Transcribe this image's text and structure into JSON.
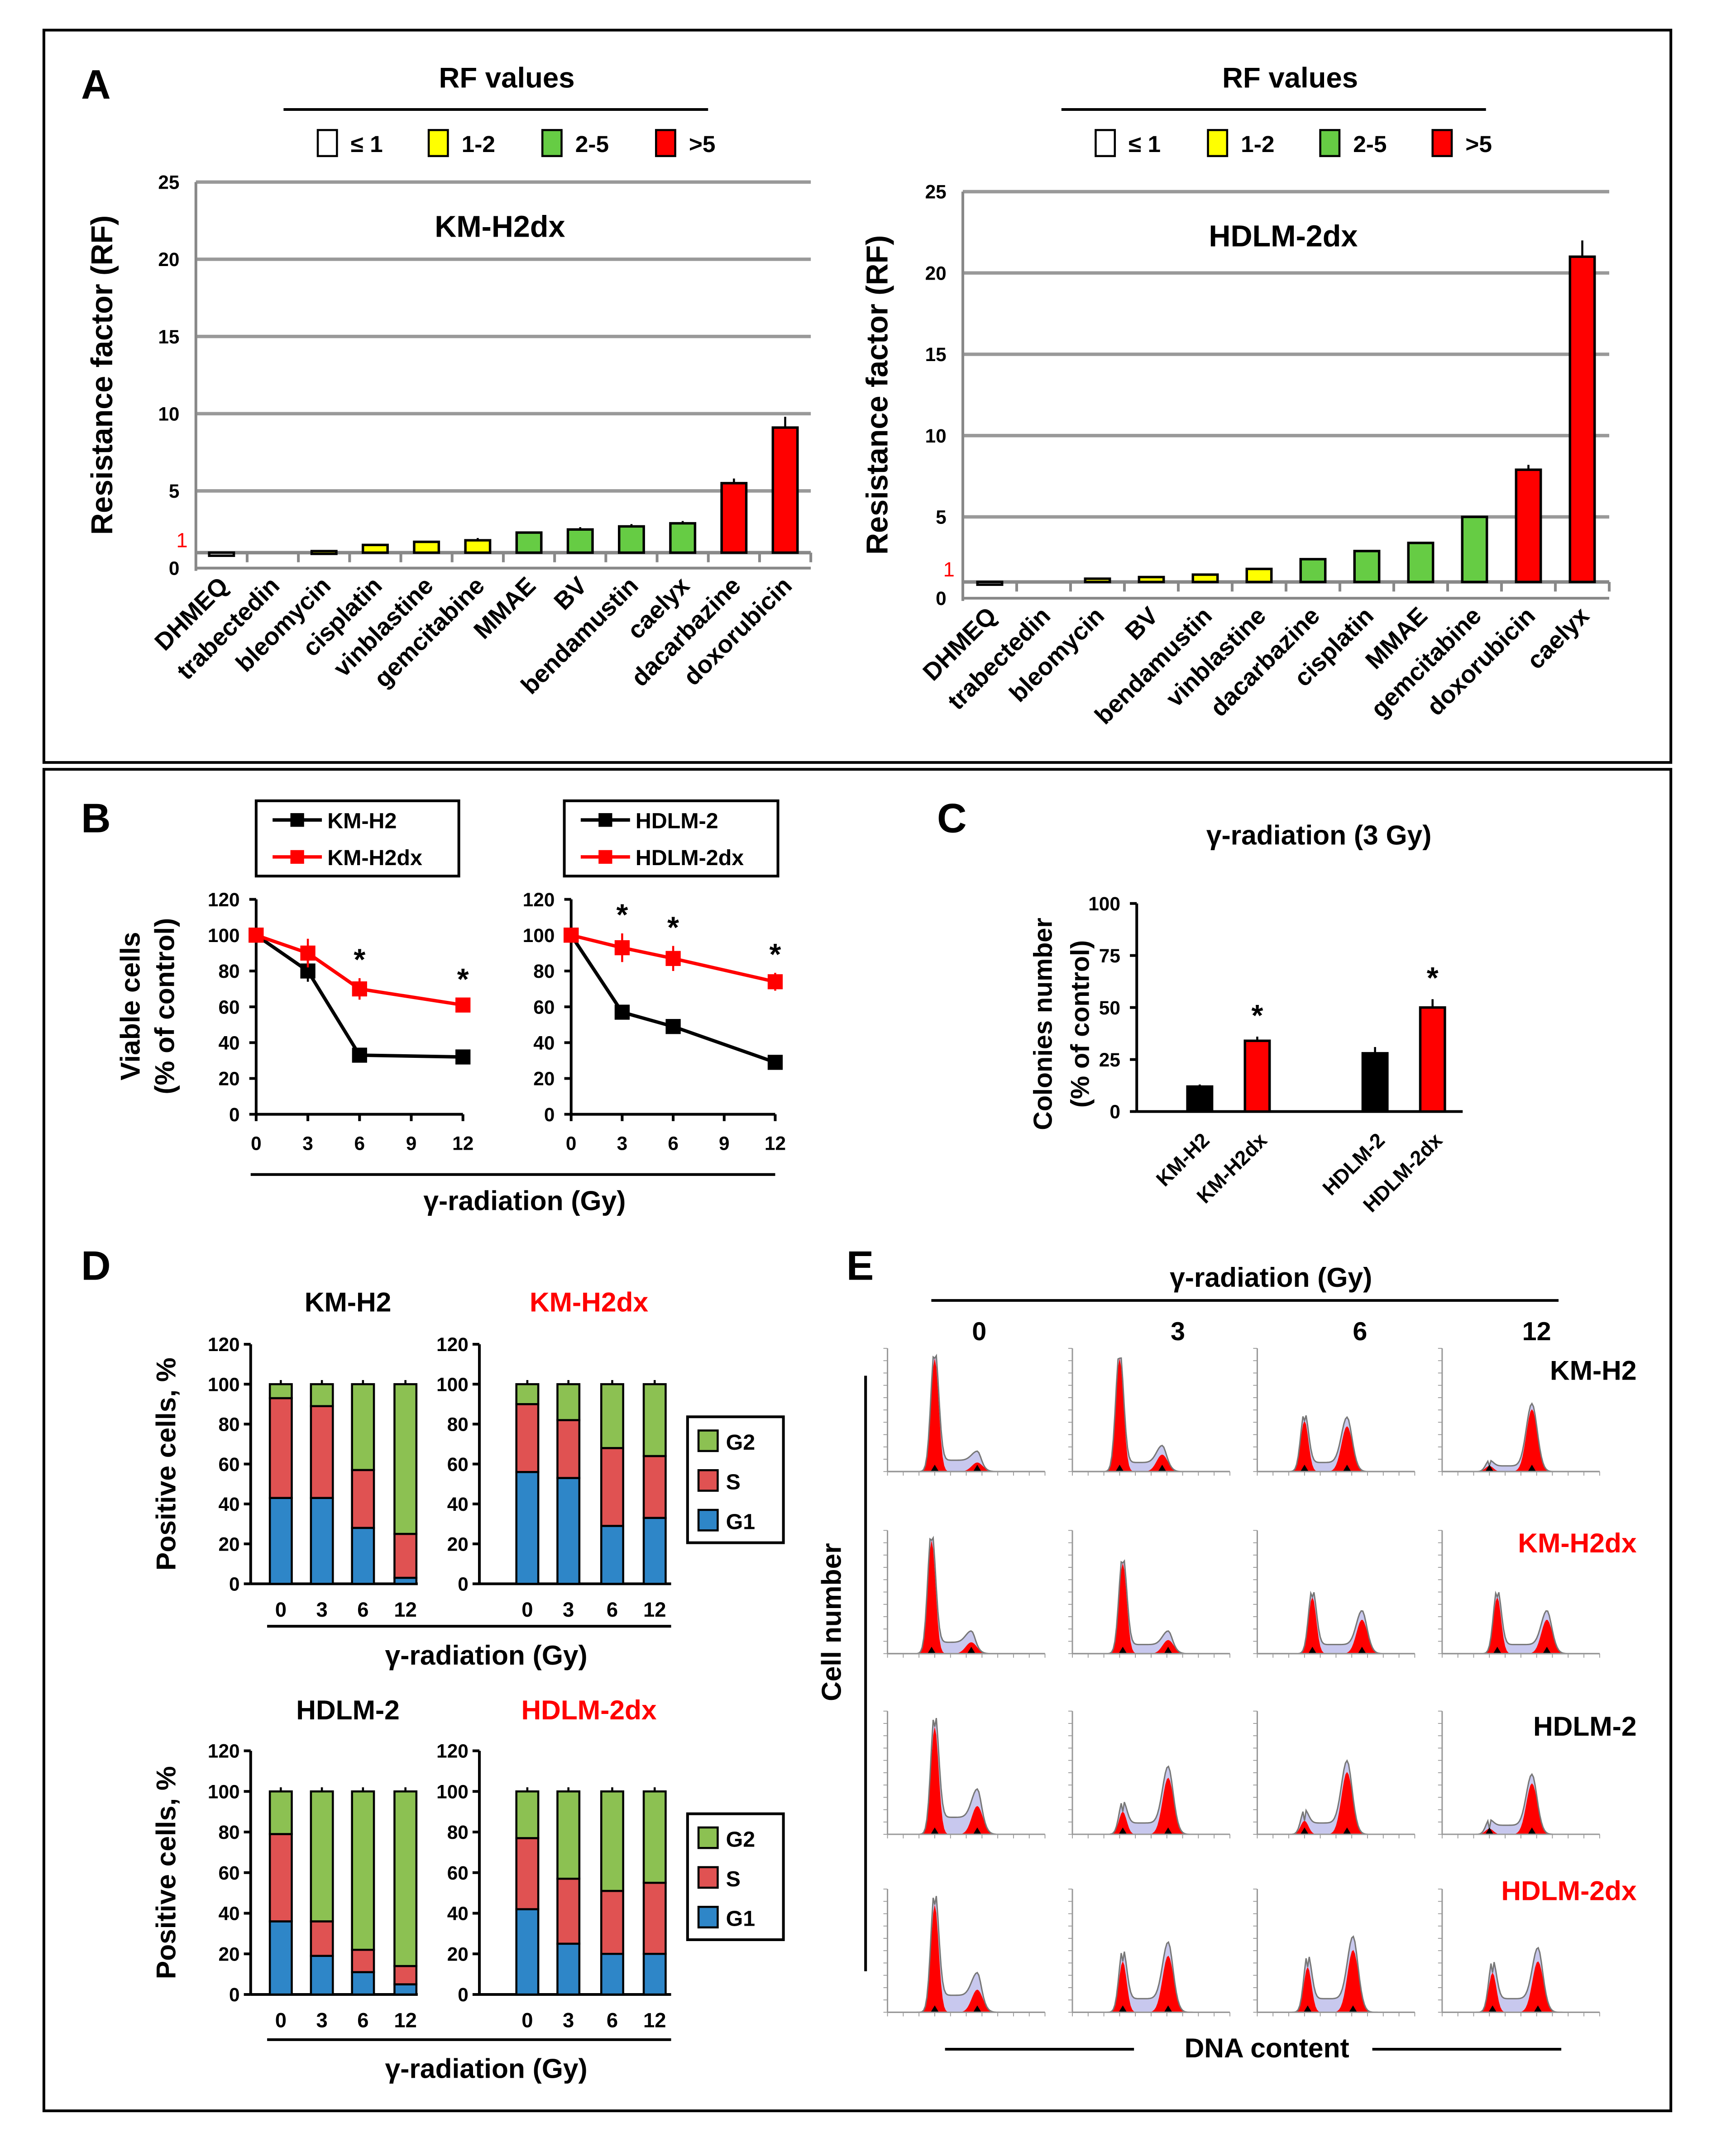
{
  "panel_labels": {
    "a": "A",
    "b": "B",
    "c": "C",
    "d": "D",
    "e": "E"
  },
  "chart_data": [
    {
      "panel": "A",
      "type": "bar",
      "title": "KM-H2dx",
      "legend_title": "RF values",
      "legend": [
        {
          "label": "≤ 1",
          "color": "#ffffff"
        },
        {
          "label": "1-2",
          "color": "#ffff00"
        },
        {
          "label": "2-5",
          "color": "#66cc44"
        },
        {
          "label": ">5",
          "color": "#ff0000"
        }
      ],
      "ylabel": "Resistance factor  (RF)",
      "ylim": [
        0,
        25
      ],
      "yticks": [
        "0",
        "5",
        "10",
        "15",
        "20",
        "25"
      ],
      "baseline": 1,
      "baseline_label": "1",
      "grid": true,
      "categories": [
        "DHMEQ",
        "trabectedin",
        "bleomycin",
        "cisplatin",
        "vinblastine",
        "gemcitabine",
        "MMAE",
        "BV",
        "bendamustin",
        "caelyx",
        "dacarbazine",
        "doxorubicin"
      ],
      "values": [
        0.8,
        1.0,
        1.1,
        1.5,
        1.7,
        1.8,
        2.3,
        2.5,
        2.7,
        2.9,
        5.5,
        9.1
      ],
      "errors": [
        0.05,
        0,
        0.05,
        0.1,
        0.1,
        0.15,
        0.1,
        0.15,
        0.15,
        0.15,
        0.3,
        0.7
      ]
    },
    {
      "panel": "A",
      "type": "bar",
      "title": "HDLM-2dx",
      "legend_title": "RF values",
      "legend": [
        {
          "label": "≤ 1",
          "color": "#ffffff"
        },
        {
          "label": "1-2",
          "color": "#ffff00"
        },
        {
          "label": "2-5",
          "color": "#66cc44"
        },
        {
          "label": ">5",
          "color": "#ff0000"
        }
      ],
      "ylabel": "Resistance factor (RF)",
      "ylim": [
        0,
        25
      ],
      "yticks": [
        "0",
        "5",
        "10",
        "15",
        "20",
        "25"
      ],
      "baseline": 1,
      "baseline_label": "1",
      "grid": true,
      "categories": [
        "DHMEQ",
        "trabectedin",
        "bleomycin",
        "BV",
        "bendamustin",
        "vinblastine",
        "dacarbazine",
        "cisplatin",
        "MMAE",
        "gemcitabine",
        "doxorubicin",
        "caelyx"
      ],
      "values": [
        0.9,
        1.0,
        1.2,
        1.3,
        1.45,
        1.8,
        2.4,
        2.9,
        3.4,
        5.0,
        7.9,
        21.0
      ],
      "errors": [
        0.05,
        0,
        0.05,
        0.05,
        0.05,
        0.1,
        0.1,
        0.1,
        0.1,
        0.1,
        0.3,
        1.0
      ]
    },
    {
      "panel": "B",
      "type": "line",
      "x": [
        0,
        3,
        6,
        12
      ],
      "xticks": [
        "0",
        "3",
        "6",
        "9",
        "12"
      ],
      "ylim": [
        0,
        120
      ],
      "yticks": [
        "0",
        "20",
        "40",
        "60",
        "80",
        "100",
        "120"
      ],
      "ylabel": [
        "Viable cells",
        "(% of control)"
      ],
      "series": [
        {
          "name": "KM-H2",
          "color": "#000000",
          "values": [
            100,
            80,
            33,
            32
          ],
          "errors": [
            8,
            6,
            3,
            3
          ]
        },
        {
          "name": "KM-H2dx",
          "color": "#ff0000",
          "values": [
            100,
            90,
            70,
            61
          ],
          "errors": [
            4,
            8,
            6,
            4
          ],
          "significant": [
            "",
            "",
            "*",
            "*"
          ]
        }
      ]
    },
    {
      "panel": "B",
      "type": "line",
      "x": [
        0,
        3,
        6,
        12
      ],
      "xticks": [
        "0",
        "3",
        "6",
        "9",
        "12"
      ],
      "ylim": [
        0,
        120
      ],
      "yticks": [
        "0",
        "20",
        "40",
        "60",
        "80",
        "100",
        "120"
      ],
      "xlabel": "γ-radiation (Gy)",
      "series": [
        {
          "name": "HDLM-2",
          "color": "#000000",
          "values": [
            100,
            57,
            49,
            29
          ],
          "errors": [
            2,
            4,
            3,
            2
          ]
        },
        {
          "name": "HDLM-2dx",
          "color": "#ff0000",
          "values": [
            100,
            93,
            87,
            74
          ],
          "errors": [
            3,
            8,
            7,
            5
          ],
          "significant": [
            "",
            "*",
            "*",
            "*"
          ]
        }
      ]
    },
    {
      "panel": "C",
      "type": "bar",
      "title": "γ-radiation (3 Gy)",
      "ylabel": [
        "Colonies number",
        "(% of control)"
      ],
      "ylim": [
        0,
        100
      ],
      "yticks": [
        "0",
        "25",
        "50",
        "75",
        "100"
      ],
      "categories": [
        "KM-H2",
        "KM-H2dx",
        "HDLM-2",
        "HDLM-2dx"
      ],
      "values": [
        12,
        34,
        28,
        50
      ],
      "errors": [
        1,
        2,
        3,
        4
      ],
      "colors": [
        "#000000",
        "#ff0000",
        "#000000",
        "#ff0000"
      ],
      "significant": [
        "",
        "*",
        "",
        "*"
      ]
    },
    {
      "panel": "D",
      "type": "bar",
      "stacked": true,
      "title": "KM-H2",
      "title_color": "#000000",
      "categories": [
        "0",
        "3",
        "6",
        "12"
      ],
      "ylim": [
        0,
        120
      ],
      "yticks": [
        "0",
        "20",
        "40",
        "60",
        "80",
        "100",
        "120"
      ],
      "ylabel": "Positive cells, %",
      "series": [
        {
          "name": "G1",
          "color": "#2e86c8",
          "values": [
            43,
            43,
            28,
            3
          ]
        },
        {
          "name": "S",
          "color": "#e05252",
          "values": [
            50,
            46,
            29,
            22
          ]
        },
        {
          "name": "G2",
          "color": "#8cc152",
          "values": [
            7,
            11,
            43,
            75
          ]
        }
      ]
    },
    {
      "panel": "D",
      "type": "bar",
      "stacked": true,
      "title": "KM-H2dx",
      "title_color": "#ff0000",
      "categories": [
        "0",
        "3",
        "6",
        "12"
      ],
      "ylim": [
        0,
        120
      ],
      "yticks": [
        "0",
        "20",
        "40",
        "60",
        "80",
        "100",
        "120"
      ],
      "xlabel": "γ-radiation (Gy)",
      "legend": [
        "G2",
        "S",
        "G1"
      ],
      "series": [
        {
          "name": "G1",
          "color": "#2e86c8",
          "values": [
            56,
            53,
            29,
            33
          ]
        },
        {
          "name": "S",
          "color": "#e05252",
          "values": [
            34,
            29,
            39,
            31
          ]
        },
        {
          "name": "G2",
          "color": "#8cc152",
          "values": [
            10,
            18,
            32,
            36
          ]
        }
      ]
    },
    {
      "panel": "D",
      "type": "bar",
      "stacked": true,
      "title": "HDLM-2",
      "title_color": "#000000",
      "categories": [
        "0",
        "3",
        "6",
        "12"
      ],
      "ylim": [
        0,
        120
      ],
      "yticks": [
        "0",
        "20",
        "40",
        "60",
        "80",
        "100",
        "120"
      ],
      "ylabel": "Positive cells, %",
      "series": [
        {
          "name": "G1",
          "color": "#2e86c8",
          "values": [
            36,
            19,
            11,
            5
          ]
        },
        {
          "name": "S",
          "color": "#e05252",
          "values": [
            43,
            17,
            11,
            9
          ]
        },
        {
          "name": "G2",
          "color": "#8cc152",
          "values": [
            21,
            64,
            78,
            86
          ]
        }
      ]
    },
    {
      "panel": "D",
      "type": "bar",
      "stacked": true,
      "title": "HDLM-2dx",
      "title_color": "#ff0000",
      "categories": [
        "0",
        "3",
        "6",
        "12"
      ],
      "ylim": [
        0,
        120
      ],
      "yticks": [
        "0",
        "20",
        "40",
        "60",
        "80",
        "100",
        "120"
      ],
      "xlabel": "γ-radiation (Gy)",
      "legend": [
        "G2",
        "S",
        "G1"
      ],
      "series": [
        {
          "name": "G1",
          "color": "#2e86c8",
          "values": [
            42,
            25,
            20,
            20
          ]
        },
        {
          "name": "S",
          "color": "#e05252",
          "values": [
            35,
            32,
            31,
            35
          ]
        },
        {
          "name": "G2",
          "color": "#8cc152",
          "values": [
            23,
            43,
            49,
            45
          ]
        }
      ]
    }
  ],
  "panel_e": {
    "header": "γ-radiation (Gy)",
    "columns": [
      "0",
      "3",
      "6",
      "12"
    ],
    "rows": [
      {
        "label": "KM-H2",
        "color": "#000000"
      },
      {
        "label": "KM-H2dx",
        "color": "#ff0000"
      },
      {
        "label": "HDLM-2",
        "color": "#000000"
      },
      {
        "label": "HDLM-2dx",
        "color": "#ff0000"
      }
    ],
    "ylabel": "Cell number",
    "xlabel": "DNA content",
    "peak_color": "#ff0000",
    "sphase_color": "#c8c8ee"
  }
}
